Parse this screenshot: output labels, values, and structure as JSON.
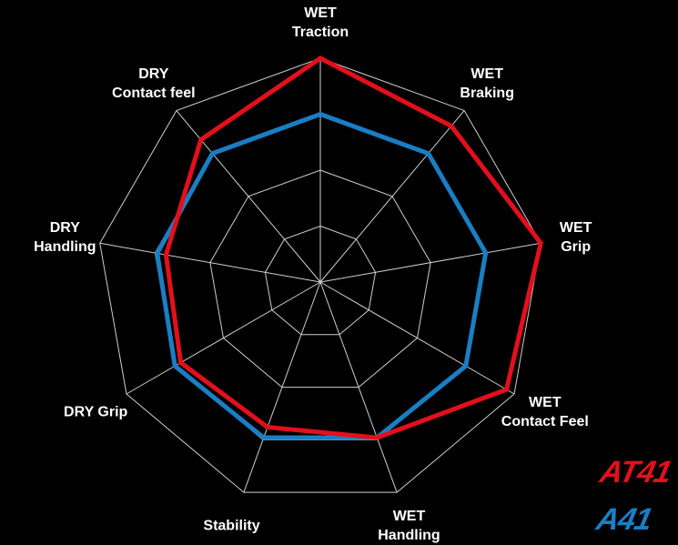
{
  "chart_data": {
    "type": "radar",
    "categories": [
      "WET\nTraction",
      "WET\nBraking",
      "WET\nGrip",
      "WET\nContact Feel",
      "WET\nHandling",
      "Stability",
      "DRY Grip",
      "DRY\nHandling",
      "DRY\nContact feel"
    ],
    "series": [
      {
        "name": "AT41",
        "color": "#e3101c",
        "values": [
          100,
          91,
          100,
          96,
          74,
          69,
          72,
          70,
          83
        ]
      },
      {
        "name": "A41",
        "color": "#1a7ec4",
        "values": [
          75,
          75,
          75,
          75,
          74,
          74,
          75,
          74,
          75
        ]
      }
    ],
    "rlim": [
      0,
      100
    ],
    "rticks": [
      25,
      50,
      75,
      100
    ],
    "grid": true
  }
}
